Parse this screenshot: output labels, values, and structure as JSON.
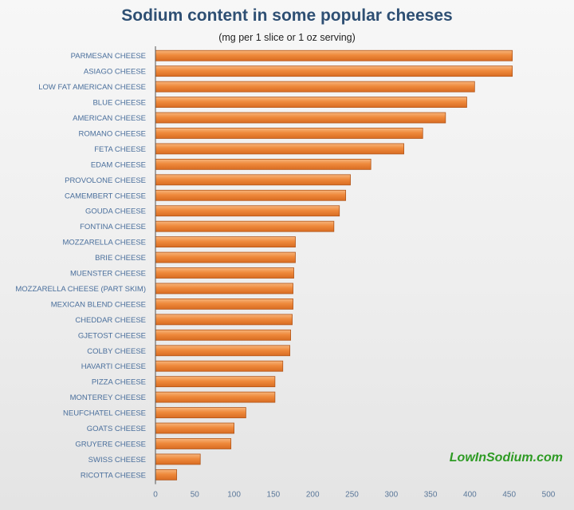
{
  "chart_data": {
    "type": "bar",
    "orientation": "horizontal",
    "title": "Sodium content in some popular cheeses",
    "subtitle": "(mg per 1 slice or 1 oz serving)",
    "xlim": [
      0,
      500
    ],
    "x_ticks": [
      "0",
      "50",
      "100",
      "150",
      "200",
      "250",
      "300",
      "350",
      "400",
      "450",
      "500"
    ],
    "grid": false,
    "categories": [
      "PARMESAN CHEESE",
      "ASIAGO CHEESE",
      "LOW FAT AMERICAN CHEESE",
      "BLUE CHEESE",
      "AMERICAN CHEESE",
      "ROMANO CHEESE",
      "FETA CHEESE",
      "EDAM CHEESE",
      "PROVOLONE CHEESE",
      "CAMEMBERT CHEESE",
      "GOUDA CHEESE",
      "FONTINA CHEESE",
      "MOZZARELLA CHEESE",
      "BRIE CHEESE",
      "MUENSTER CHEESE",
      "MOZZARELLA CHEESE (PART SKIM)",
      "MEXICAN BLEND CHEESE",
      "CHEDDAR CHEESE",
      "GJETOST CHEESE",
      "COLBY CHEESE",
      "HAVARTI CHEESE",
      "PIZZA CHEESE",
      "MONTEREY CHEESE",
      "NEUFCHATEL CHEESE",
      "GOATS CHEESE",
      "GRUYERE CHEESE",
      "SWISS CHEESE",
      "RICOTTA CHEESE"
    ],
    "values": [
      454,
      454,
      406,
      396,
      369,
      340,
      316,
      274,
      248,
      242,
      234,
      227,
      178,
      178,
      176,
      175,
      175,
      174,
      172,
      171,
      162,
      152,
      152,
      115,
      100,
      96,
      57,
      27
    ],
    "bar_color": "#ef8a3c"
  },
  "watermark": "LowInSodium.com"
}
